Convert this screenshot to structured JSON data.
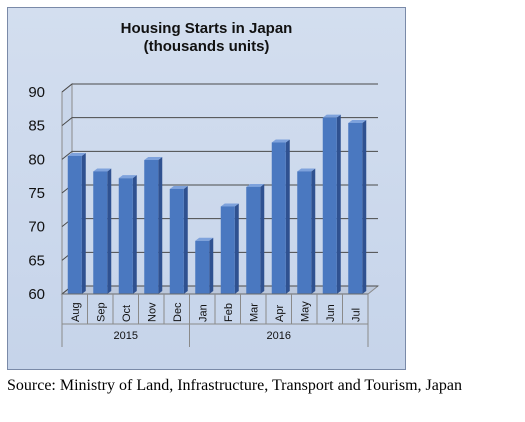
{
  "chart_data": {
    "type": "bar",
    "title_lines": [
      "Housing Starts in Japan",
      "(thousands units)"
    ],
    "categories": [
      "Aug",
      "Sep",
      "Oct",
      "Nov",
      "Dec",
      "Jan",
      "Feb",
      "Mar",
      "Apr",
      "May",
      "Jun",
      "Jul"
    ],
    "groups": [
      {
        "label": "2015",
        "start": 0,
        "end": 4
      },
      {
        "label": "2016",
        "start": 5,
        "end": 11
      }
    ],
    "values": [
      80.5,
      78.2,
      77.2,
      79.9,
      75.6,
      67.9,
      73.0,
      75.9,
      82.5,
      78.2,
      86.2,
      85.4
    ],
    "ylim": [
      60,
      90
    ],
    "yticks": [
      60,
      65,
      70,
      75,
      80,
      85,
      90
    ],
    "grid": true,
    "bar_color": "#4a78c0",
    "bar_top_color": "#7ea2dc",
    "bar_side_color": "#2f5190"
  },
  "source": "Source: Ministry of Land, Infrastructure, Transport and Tourism, Japan"
}
